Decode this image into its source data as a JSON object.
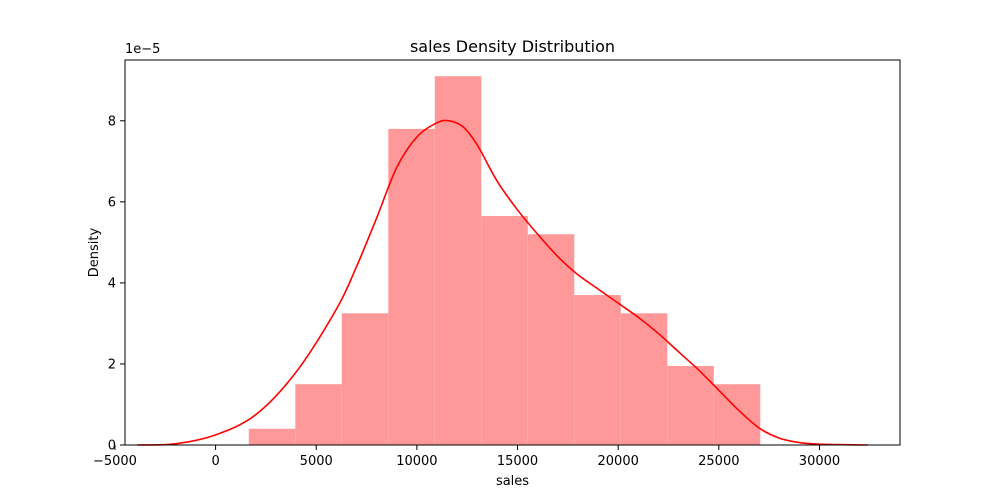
{
  "chart_data": {
    "type": "bar",
    "title": "sales Density Distribution",
    "xlabel": "sales",
    "ylabel": "Density",
    "y_scale_label": "1e−5",
    "y_scale": 1e-05,
    "xlim": [
      -4500,
      34000
    ],
    "ylim": [
      0,
      9.5
    ],
    "x_ticks": [
      -5000,
      0,
      5000,
      10000,
      15000,
      20000,
      25000,
      30000
    ],
    "y_ticks": [
      0,
      2,
      4,
      6,
      8
    ],
    "x_tick_labels": [
      "−5000",
      "0",
      "5000",
      "10000",
      "15000",
      "20000",
      "25000",
      "30000"
    ],
    "y_tick_labels": [
      "0",
      "2",
      "4",
      "6",
      "8"
    ],
    "grid": false,
    "histogram": {
      "bin_edges": [
        1650,
        3960,
        6270,
        8580,
        10890,
        13200,
        15510,
        17820,
        20130,
        22440,
        24750,
        27060
      ],
      "density": [
        0.4,
        1.5,
        3.25,
        7.8,
        9.1,
        5.65,
        5.2,
        3.7,
        3.25,
        1.95,
        1.5
      ],
      "color": "#ff9999"
    },
    "kde": {
      "color": "#ff0000",
      "x": [
        -3900,
        -2000,
        0,
        2000,
        4000,
        6000,
        7000,
        8000,
        9000,
        10000,
        11000,
        11600,
        12300,
        13000,
        14000,
        15000,
        16000,
        17000,
        18000,
        19000,
        20000,
        21000,
        22000,
        23000,
        24000,
        25000,
        26000,
        27000,
        28000,
        29000,
        30000,
        31000,
        32400
      ],
      "y": [
        0.0,
        0.03,
        0.25,
        0.75,
        1.8,
        3.35,
        4.4,
        5.6,
        6.85,
        7.6,
        7.95,
        8.0,
        7.85,
        7.4,
        6.5,
        5.8,
        5.2,
        4.65,
        4.2,
        3.85,
        3.5,
        3.15,
        2.75,
        2.3,
        1.85,
        1.35,
        0.85,
        0.42,
        0.17,
        0.06,
        0.02,
        0.01,
        0.0
      ]
    }
  }
}
